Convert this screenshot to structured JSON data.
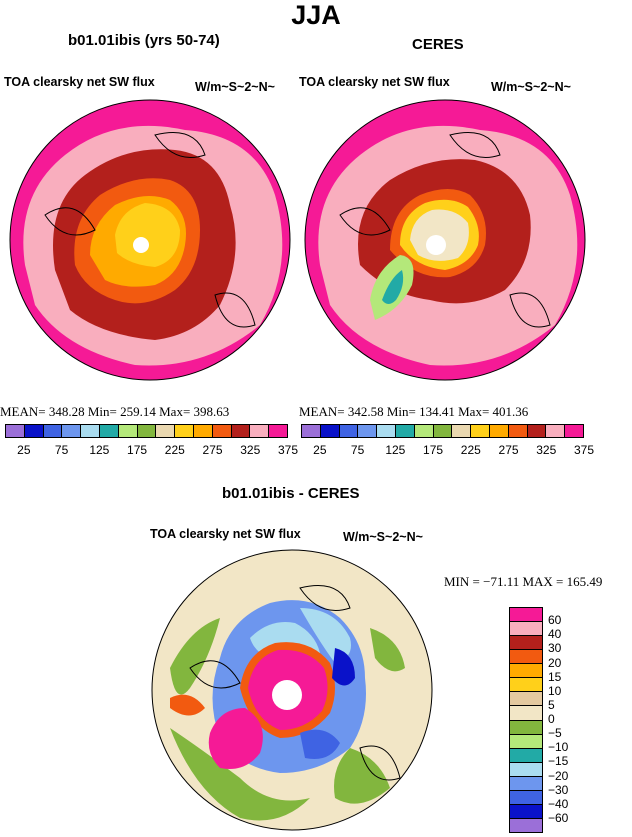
{
  "main_title": "JJA",
  "panels": [
    {
      "title": "b01.01ibis (yrs 50-74)",
      "var": "TOA clearsky net SW flux",
      "units": "W/m~S~2~N~",
      "stats": "MEAN= 348.28 Min= 259.14 Max= 398.63"
    },
    {
      "title": "CERES",
      "var": "TOA clearsky net SW flux",
      "units": "W/m~S~2~N~",
      "stats": "MEAN= 342.58 Min= 134.41 Max= 401.36"
    }
  ],
  "diff": {
    "title": "b01.01ibis - CERES",
    "var": "TOA clearsky net SW flux",
    "units": "W/m~S~2~N~",
    "stats": "MIN = −71.11 MAX = 165.49"
  },
  "colorbar_h": {
    "colors": [
      "#9b6fd8",
      "#0a12c9",
      "#3f63e3",
      "#6d96ee",
      "#aadcf0",
      "#22aaa6",
      "#b4e87a",
      "#82b63e",
      "#ead8b0",
      "#ffd01a",
      "#ffaa00",
      "#f25a10",
      "#b3201c",
      "#f9aebe",
      "#f51a96"
    ],
    "labels": [
      "25",
      "75",
      "125",
      "175",
      "225",
      "275",
      "325",
      "375"
    ]
  },
  "colorbar_v": {
    "colors": [
      "#f51a96",
      "#f9aebe",
      "#b3201c",
      "#f25a10",
      "#ffaa00",
      "#ffd01a",
      "#e4c9a0",
      "#f2e6c6",
      "#82b63e",
      "#b4e87a",
      "#22aaa6",
      "#aadcf0",
      "#6d96ee",
      "#3f63e3",
      "#0a12c9",
      "#9b6fd8"
    ],
    "labels": [
      "60",
      "40",
      "30",
      "20",
      "15",
      "10",
      "5",
      "0",
      "−5",
      "−10",
      "−15",
      "−20",
      "−30",
      "−40",
      "−60"
    ]
  }
}
